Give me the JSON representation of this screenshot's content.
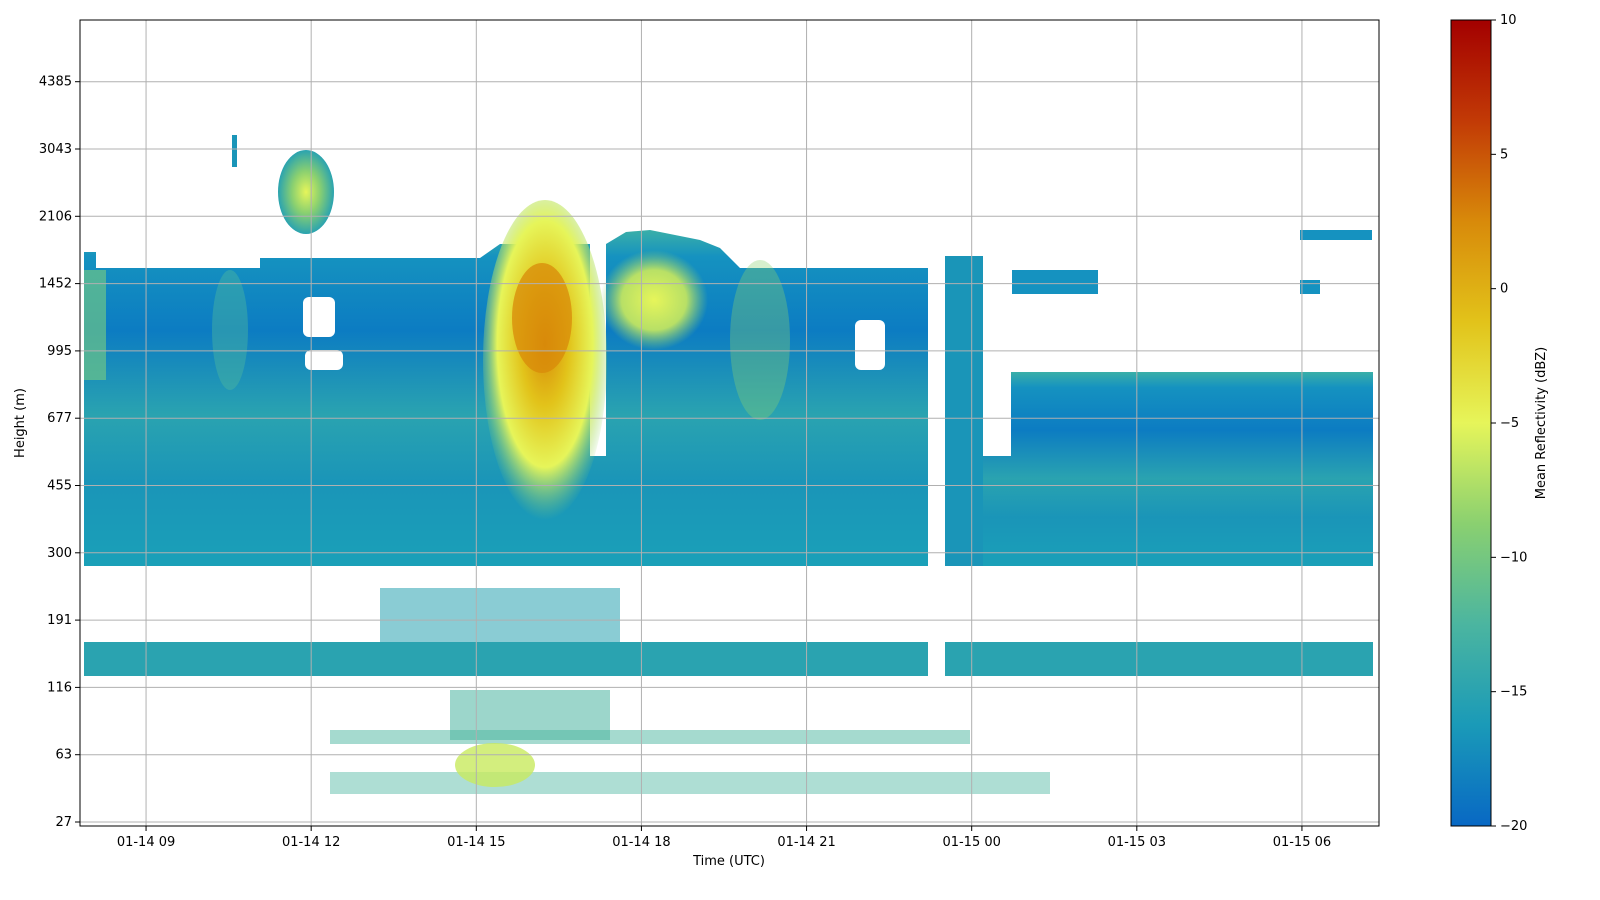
{
  "chart_data": {
    "type": "heatmap",
    "title": "",
    "xlabel": "Time (UTC)",
    "ylabel": "Height (m)",
    "x_ticks": [
      "01-14 09",
      "01-14 12",
      "01-14 15",
      "01-14 18",
      "01-14 21",
      "01-15 00",
      "01-15 03",
      "01-15 06"
    ],
    "y_ticks": [
      "27",
      "63",
      "116",
      "191",
      "300",
      "455",
      "677",
      "995",
      "1452",
      "2106",
      "3043",
      "4385"
    ],
    "xlim": [
      "01-14 07:48",
      "01-15 07:24"
    ],
    "colorbar": {
      "label": "Mean Reflectivity (dBZ)",
      "range": [
        -20,
        10
      ],
      "ticks": [
        "10",
        "5",
        "0",
        "−5",
        "−10",
        "−15",
        "−20"
      ],
      "colors": [
        "#0868c4",
        "#1a9ab8",
        "#4bb5a0",
        "#8ad070",
        "#e6f55a",
        "#e2c31a",
        "#d88a0a",
        "#c23a06",
        "#a30000"
      ]
    },
    "grid": true,
    "features": [
      {
        "desc": "low cloud/precip layer",
        "time": [
          "07:48",
          "23:12"
        ],
        "height": [
          270,
          1600
        ],
        "dbz": -17
      },
      {
        "desc": "core max",
        "time": "16:05",
        "height": 1180,
        "dbz": -1
      },
      {
        "desc": "secondary max",
        "time": "18:15",
        "height": 1290,
        "dbz": -9
      },
      {
        "desc": "isolated cell",
        "time": "11:40",
        "height": 2400,
        "dbz": -9
      },
      {
        "desc": "night layer",
        "time": [
          "23:30",
          "07:24"
        ],
        "height": [
          270,
          830
        ],
        "dbz": -16
      }
    ]
  }
}
